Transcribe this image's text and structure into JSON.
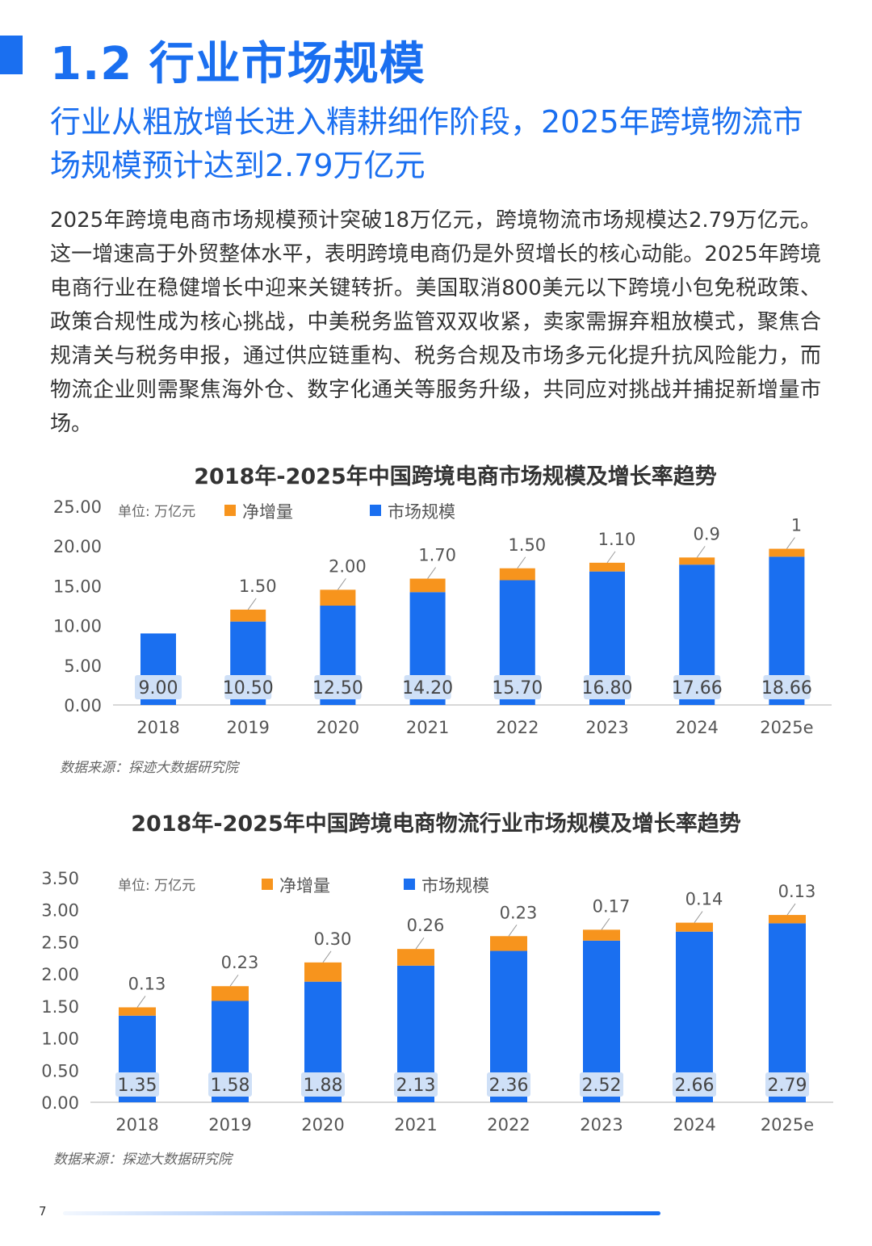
{
  "header": {
    "title": "1.2 行业市场规模",
    "subtitle": "行业从粗放增长进入精耕细作阶段，2025年跨境物流市场规模预计达到2.79万亿元"
  },
  "body_text": "2025年跨境电商市场规模预计突破18万亿元，跨境物流市场规模达2.79万亿元。这一增速高于外贸整体水平，表明跨境电商仍是外贸增长的核心动能。2025年跨境电商行业在稳健增长中迎来关键转折。美国取消800美元以下跨境小包免税政策、政策合规性成为核心挑战，中美税务监管双双收紧，卖家需摒弃粗放模式，聚焦合规清关与税务申报，通过供应链重构、税务合规及市场多元化提升抗风险能力，而物流企业则需聚焦海外仓、数字化通关等服务升级，共同应对挑战并捕捉新增量市场。",
  "colors": {
    "accent": "#1a6ff0",
    "market": "#1a6ff0",
    "increment": "#f7941d",
    "label_box": "#cfe0f7"
  },
  "chart_data": [
    {
      "type": "bar",
      "stacked": true,
      "title": "2018年-2025年中国跨境电商市场规模及增长率趋势",
      "unit_label": "单位: 万亿元",
      "categories": [
        "2018",
        "2019",
        "2020",
        "2021",
        "2022",
        "2023",
        "2024",
        "2025e"
      ],
      "series": [
        {
          "name": "市场规模",
          "color": "#1a6ff0",
          "values": [
            9.0,
            10.5,
            12.5,
            14.2,
            15.7,
            16.8,
            17.66,
            18.66
          ]
        },
        {
          "name": "净增量",
          "color": "#f7941d",
          "values": [
            null,
            1.5,
            2.0,
            1.7,
            1.5,
            1.1,
            0.9,
            1
          ]
        }
      ],
      "market_labels": [
        "9.00",
        "10.50",
        "12.50",
        "14.20",
        "15.70",
        "16.80",
        "17.66",
        "18.66"
      ],
      "increment_labels": [
        "",
        "1.50",
        "2.00",
        "1.70",
        "1.50",
        "1.10",
        "0.9",
        "1"
      ],
      "yticks": [
        "0.00",
        "5.00",
        "10.00",
        "15.00",
        "20.00",
        "25.00"
      ],
      "ylim": [
        0,
        25
      ],
      "legend_position": "top-left",
      "grid": false,
      "source": "数据来源：探迹大数据研究院"
    },
    {
      "type": "bar",
      "stacked": true,
      "title": "2018年-2025年中国跨境电商物流行业市场规模及增长率趋势",
      "unit_label": "单位: 万亿元",
      "categories": [
        "2018",
        "2019",
        "2020",
        "2021",
        "2022",
        "2023",
        "2024",
        "2025e"
      ],
      "series": [
        {
          "name": "市场规模",
          "color": "#1a6ff0",
          "values": [
            1.35,
            1.58,
            1.88,
            2.13,
            2.36,
            2.52,
            2.66,
            2.79
          ]
        },
        {
          "name": "净增量",
          "color": "#f7941d",
          "values": [
            0.13,
            0.23,
            0.3,
            0.26,
            0.23,
            0.17,
            0.14,
            0.13
          ]
        }
      ],
      "market_labels": [
        "1.35",
        "1.58",
        "1.88",
        "2.13",
        "2.36",
        "2.52",
        "2.66",
        "2.79"
      ],
      "increment_labels": [
        "0.13",
        "0.23",
        "0.30",
        "0.26",
        "0.23",
        "0.17",
        "0.14",
        "0.13"
      ],
      "yticks": [
        "0.00",
        "0.50",
        "1.00",
        "1.50",
        "2.00",
        "2.50",
        "3.00",
        "3.50"
      ],
      "ylim": [
        0,
        3.5
      ],
      "legend_position": "top-left",
      "grid": false,
      "source": "数据来源：探迹大数据研究院"
    }
  ],
  "footer": {
    "page_number": "7"
  }
}
